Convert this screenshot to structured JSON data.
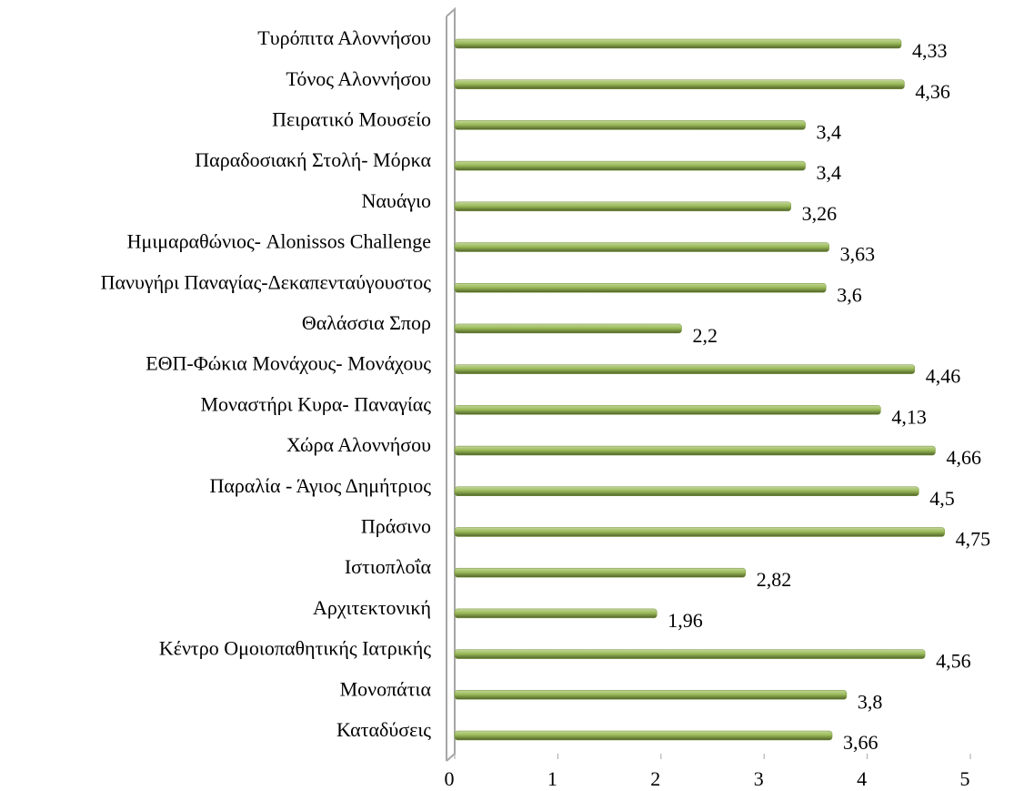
{
  "chart_data": {
    "type": "bar",
    "orientation": "horizontal",
    "categories": [
      "Τυρόπιτα Αλοννήσου",
      "Τόνος Αλοννήσου",
      "Πειρατικό Μουσείο",
      "Παραδοσιακή Στολή- Μόρκα",
      "Ναυάγιο",
      "Ημιμαραθώνιος- Alonissos Challenge",
      "Πανυγήρι Παναγίας-Δεκαπενταύγουστος",
      "Θαλάσσια Σπορ",
      "ΕΘΠ-Φώκια Μονάχους- Μονάχους",
      "Μοναστήρι Κυρα- Παναγίας",
      "Χώρα Αλοννήσου",
      "Παραλία - Άγιος Δημήτριος",
      "Πράσινο",
      "Ιστιοπλοΐα",
      "Αρχιτεκτονική",
      "Κέντρο Ομοιοπαθητικής Ιατρικής",
      "Μονοπάτια",
      "Καταδύσεις"
    ],
    "values": [
      4.33,
      4.36,
      3.4,
      3.4,
      3.26,
      3.63,
      3.6,
      2.2,
      4.46,
      4.13,
      4.66,
      4.5,
      4.75,
      2.82,
      1.96,
      4.56,
      3.8,
      3.66
    ],
    "value_labels": [
      "4,33",
      "4,36",
      "3,4",
      "3,4",
      "3,26",
      "3,63",
      "3,6",
      "2,2",
      "4,46",
      "4,13",
      "4,66",
      "4,5",
      "4,75",
      "2,82",
      "1,96",
      "4,56",
      "3,8",
      "3,66"
    ],
    "color": "#77933c",
    "xlim": [
      0,
      5
    ],
    "xticks": [
      0,
      1,
      2,
      3,
      4,
      5
    ]
  }
}
